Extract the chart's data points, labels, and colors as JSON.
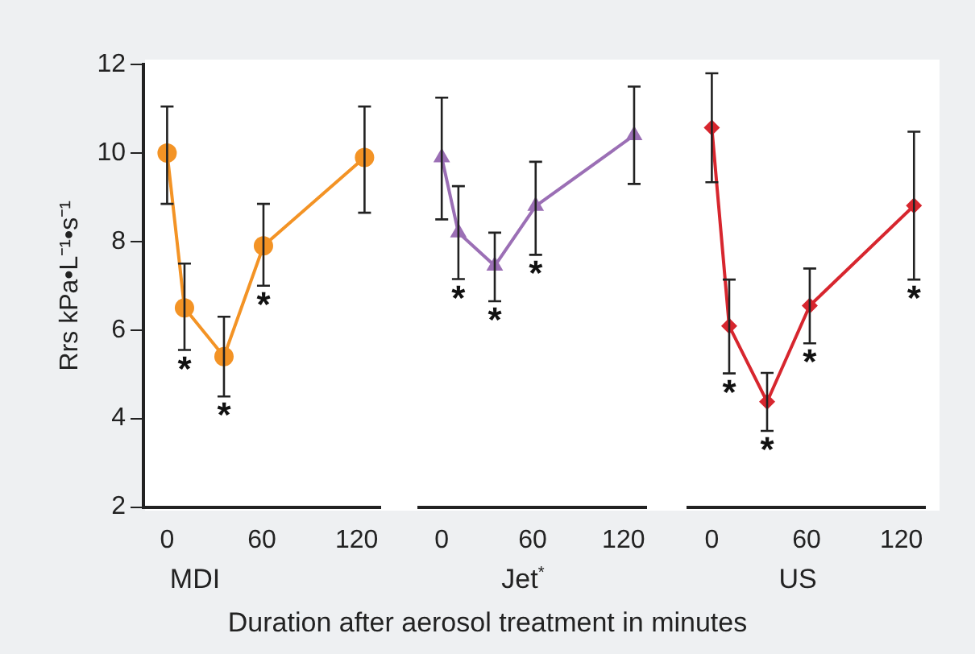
{
  "chart_data": [
    {
      "type": "line",
      "xlabel": "MDI",
      "ylabel": "Rrs kPa•L⁻¹•s⁻¹",
      "x": [
        0,
        11,
        36,
        61,
        125
      ],
      "series": [
        {
          "color": "#f39325",
          "values": [
            10.0,
            6.5,
            5.4,
            7.9,
            9.9
          ],
          "errors": [
            [
              8.85,
              11.05
            ],
            [
              5.55,
              7.5
            ],
            [
              4.5,
              6.3
            ],
            [
              7.0,
              8.85
            ],
            [
              8.65,
              11.05
            ]
          ]
        }
      ],
      "marker": "circle",
      "xlim": [
        -15,
        135
      ],
      "xticks": [
        0,
        60,
        120
      ],
      "ylim": [
        2,
        12
      ],
      "yticks": [
        2,
        4,
        6,
        8,
        10,
        12
      ],
      "annotations": [
        {
          "text": "*",
          "x": 11,
          "y": 6.5
        },
        {
          "text": "*",
          "x": 36,
          "y": 5.4
        },
        {
          "text": "*",
          "x": 61,
          "y": 7.9
        }
      ]
    },
    {
      "type": "line",
      "xlabel": "Jet$^{*}$",
      "x": [
        0,
        11,
        35,
        62,
        127
      ],
      "series": [
        {
          "color": "#9b6fb5",
          "values": [
            9.9,
            8.2,
            7.45,
            8.8,
            10.4
          ],
          "errors": [
            [
              8.5,
              11.25
            ],
            [
              7.15,
              9.25
            ],
            [
              6.65,
              8.2
            ],
            [
              7.7,
              9.8
            ],
            [
              9.3,
              11.5
            ]
          ]
        }
      ],
      "marker": "triangle",
      "xlim": [
        -15,
        135
      ],
      "xticks": [
        0,
        60,
        120
      ],
      "ylim": [
        2,
        12
      ],
      "yticks": [
        2,
        4,
        6,
        8,
        10,
        12
      ],
      "tick_labels": "x",
      "annotations": [
        {
          "text": "*",
          "x": 11,
          "y": 8.2
        },
        {
          "text": "*",
          "x": 35,
          "y": 7.45
        },
        {
          "text": "*",
          "x": 62,
          "y": 8.8
        },
        "Duration after aerosol treatment in minutes"
      ]
    },
    {
      "type": "line",
      "xlabel": "US",
      "x": [
        0,
        11,
        35,
        62,
        128
      ],
      "series": [
        {
          "color": "#d7262e",
          "values": [
            10.57,
            6.09,
            4.38,
            6.55,
            8.81
          ],
          "errors": [
            [
              9.34,
              11.8
            ],
            [
              5.02,
              7.14
            ],
            [
              3.72,
              5.03
            ],
            [
              5.7,
              7.39
            ],
            [
              7.14,
              10.48
            ]
          ]
        }
      ],
      "marker": "diamond",
      "xlim": [
        -15,
        135
      ],
      "xticks": [
        0,
        60,
        120
      ],
      "ylim": [
        2,
        12
      ],
      "yticks": [
        2,
        4,
        6,
        8,
        10,
        12
      ],
      "tick_labels": "x",
      "annotations": [
        {
          "text": "*",
          "x": 11,
          "y": 6.09
        },
        {
          "text": "*",
          "x": 35,
          "y": 4.38
        },
        {
          "text": "*",
          "x": 62,
          "y": 6.55
        },
        {
          "text": "*",
          "x": 128,
          "y": 8.81
        }
      ]
    }
  ]
}
